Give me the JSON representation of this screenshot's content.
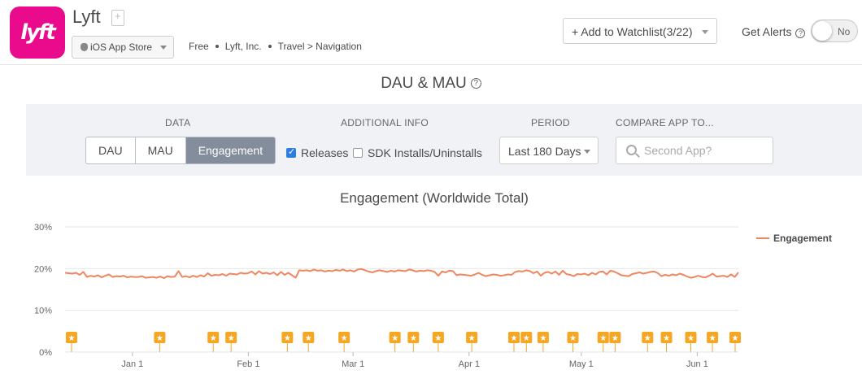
{
  "app": {
    "name": "Lyft",
    "icon_text": "lyft",
    "icon_color": "#ea0b8c",
    "store": "iOS App Store",
    "price": "Free",
    "publisher": "Lyft, Inc.",
    "category": "Travel > Navigation"
  },
  "header": {
    "watchlist_label": "+ Add to Watchlist(3/22)",
    "alerts_label": "Get Alerts",
    "toggle_label": "No"
  },
  "section": {
    "title": "DAU & MAU"
  },
  "controls": {
    "data_label": "DATA",
    "data_options": [
      "DAU",
      "MAU",
      "Engagement"
    ],
    "data_selected": "Engagement",
    "additional_label": "ADDITIONAL INFO",
    "releases_label": "Releases",
    "releases_checked": true,
    "sdk_label": "SDK Installs/Uninstalls",
    "sdk_checked": false,
    "period_label": "PERIOD",
    "period_value": "Last 180 Days",
    "compare_label": "COMPARE APP TO...",
    "compare_placeholder": "Second App?"
  },
  "chart_data": {
    "type": "line",
    "title": "Engagement (Worldwide Total)",
    "ylim": [
      0,
      30
    ],
    "yticks": [
      "0%",
      "10%",
      "20%",
      "30%"
    ],
    "xticks": [
      "Jan 1",
      "Feb 1",
      "Mar 1",
      "Apr 1",
      "May 1",
      "Jun 1"
    ],
    "xrange_days": 180,
    "grid": true,
    "legend_position": "top-right",
    "series": [
      {
        "name": "Engagement",
        "color": "#f0865f",
        "values": [
          19.0,
          18.9,
          18.8,
          19.0,
          18.5,
          19.2,
          18.0,
          18.3,
          18.1,
          18.4,
          17.9,
          18.3,
          18.6,
          18.0,
          18.2,
          18.1,
          18.3,
          17.9,
          18.1,
          18.0,
          18.0,
          18.2,
          17.8,
          17.9,
          18.0,
          17.8,
          18.1,
          17.7,
          18.2,
          18.0,
          18.1,
          19.4,
          18.0,
          18.2,
          17.9,
          18.3,
          18.0,
          18.4,
          18.1,
          18.9,
          18.3,
          18.5,
          18.4,
          18.7,
          18.3,
          18.8,
          18.7,
          18.6,
          19.0,
          18.8,
          18.9,
          19.3,
          18.6,
          19.4,
          18.8,
          19.0,
          18.7,
          19.1,
          18.4,
          19.2,
          18.5,
          19.0,
          18.4,
          17.8,
          19.6,
          19.5,
          19.6,
          19.4,
          19.8,
          19.5,
          19.6,
          19.3,
          19.5,
          19.4,
          19.7,
          19.5,
          19.8,
          19.4,
          19.6,
          19.3,
          19.8,
          19.9,
          19.6,
          19.3,
          19.1,
          19.4,
          19.6,
          19.4,
          19.2,
          19.5,
          19.3,
          19.6,
          19.5,
          19.4,
          19.8,
          19.6,
          19.3,
          19.5,
          19.4,
          19.6,
          19.5,
          19.2,
          18.3,
          19.3,
          19.1,
          19.5,
          19.4,
          18.4,
          18.6,
          18.5,
          18.4,
          18.3,
          18.6,
          19.0,
          18.5,
          18.2,
          18.4,
          18.6,
          18.5,
          18.3,
          18.4,
          18.6,
          18.5,
          19.2,
          19.4,
          19.3,
          19.6,
          19.4,
          18.9,
          19.3,
          18.3,
          19.0,
          19.2,
          18.8,
          19.3,
          18.5,
          19.5,
          18.7,
          18.5,
          18.2,
          18.7,
          18.6,
          18.8,
          18.4,
          19.0,
          18.6,
          19.2,
          19.3,
          18.6,
          19.5,
          19.3,
          18.9,
          18.4,
          18.3,
          18.2,
          18.7,
          18.9,
          19.1,
          18.8,
          19.0,
          19.2,
          19.3,
          18.9,
          18.2,
          18.5,
          18.3,
          18.6,
          18.4,
          18.8,
          18.5,
          18.1,
          17.8,
          18.0,
          18.3,
          18.0,
          17.9,
          18.3,
          18.8,
          18.1,
          18.2,
          18.3,
          18.0,
          18.6,
          18.0,
          19.1
        ]
      }
    ],
    "release_markers_x": [
      1.2,
      17.5,
      27.4,
      30.7,
      41.1,
      45.0,
      51.6,
      61.0,
      64.4,
      69.0,
      75.2,
      83.0,
      85.3,
      88.4,
      93.9,
      99.5,
      101.7,
      107.7,
      111.2,
      115.7,
      119.7,
      123.9
    ],
    "marker_glyph": "★",
    "marker_color": "#f5a623"
  }
}
